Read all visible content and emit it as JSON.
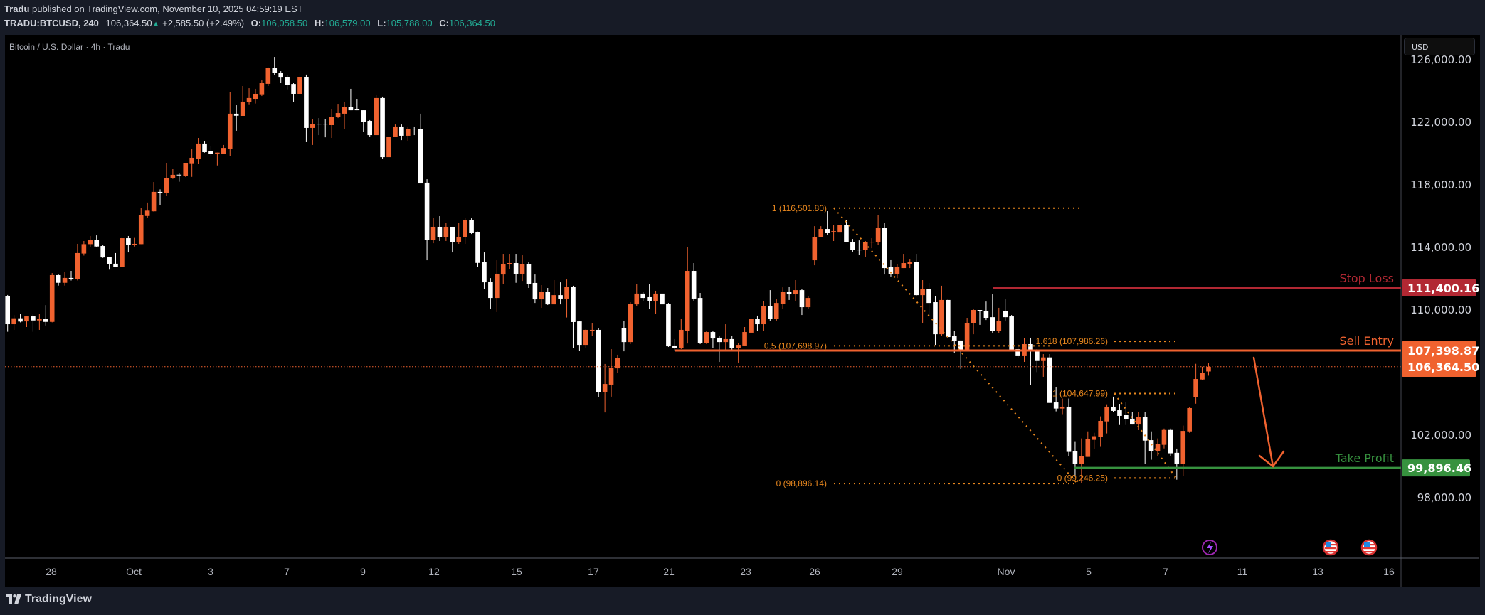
{
  "header": {
    "publisher": "Tradu",
    "published_text": "published on TradingView.com, November 10, 2025 04:59:19 EST",
    "symbol": "TRADU:BTCUSD, 240",
    "last": "106,364.50",
    "change": "+2,585.50 (+2.49%)",
    "o_label": "O:",
    "o": "106,058.50",
    "h_label": "H:",
    "h": "106,579.00",
    "l_label": "L:",
    "l": "105,788.00",
    "c_label": "C:",
    "c": "106,364.50"
  },
  "chart_title": "Bitcoin / U.S. Dollar · 4h · Tradu",
  "currency_button": "USD",
  "footer_logo": "TradingView",
  "colors": {
    "up": "#f0622f",
    "down": "#ffffff",
    "stop": "#b22833",
    "entry": "#f0622f",
    "take": "#37923f",
    "fib": "#e8871e",
    "ohlc": "#22ab94"
  },
  "chart_data": {
    "type": "candlestick",
    "title": "Bitcoin / U.S. Dollar · 4h · Tradu",
    "ylim": [
      94000,
      127600
    ],
    "grid": false,
    "price_ticks": [
      "126,000.00",
      "122,000.00",
      "118,000.00",
      "114,000.00",
      "110,000.00",
      "102,000.00",
      "98,000.00"
    ],
    "price_tick_values": [
      126000,
      122000,
      118000,
      114000,
      110000,
      102000,
      98000
    ],
    "time_ticks": [
      "28",
      "Oct",
      "3",
      "7",
      "9",
      "12",
      "15",
      "17",
      "21",
      "23",
      "26",
      "29",
      "Nov",
      "5",
      "7",
      "11",
      "13",
      "16"
    ],
    "candles_ohlc": [
      [
        110900,
        110950,
        108600,
        109080
      ],
      [
        109080,
        109660,
        108720,
        109460
      ],
      [
        109460,
        109760,
        109200,
        109250
      ],
      [
        109260,
        109600,
        108900,
        109580
      ],
      [
        109580,
        109700,
        108600,
        109320
      ],
      [
        109320,
        109760,
        108720,
        109420
      ],
      [
        109420,
        110300,
        109000,
        109230
      ],
      [
        109230,
        112350,
        109200,
        112220
      ],
      [
        112220,
        112260,
        111550,
        111730
      ],
      [
        111730,
        112430,
        111550,
        112040
      ],
      [
        112040,
        112490,
        111880,
        111960
      ],
      [
        111960,
        114220,
        111880,
        113630
      ],
      [
        113600,
        114400,
        113470,
        114200
      ],
      [
        114200,
        114720,
        114020,
        114490
      ],
      [
        114490,
        114760,
        114020,
        114050
      ],
      [
        114080,
        114130,
        113320,
        113350
      ],
      [
        113400,
        113400,
        112570,
        112900
      ],
      [
        112950,
        113630,
        112730,
        112730
      ],
      [
        112730,
        114660,
        112730,
        114580
      ],
      [
        114580,
        114720,
        113670,
        114160
      ],
      [
        114130,
        114600,
        114050,
        114220
      ],
      [
        114200,
        116490,
        114200,
        116040
      ],
      [
        116000,
        116860,
        115900,
        116340
      ],
      [
        116300,
        118170,
        116280,
        117540
      ],
      [
        117540,
        117700,
        116690,
        117480
      ],
      [
        117450,
        119400,
        117300,
        118400
      ],
      [
        118400,
        119000,
        118370,
        118630
      ],
      [
        118640,
        118720,
        118190,
        118600
      ],
      [
        118580,
        119400,
        118500,
        119400
      ],
      [
        119370,
        120260,
        118500,
        119720
      ],
      [
        119670,
        120990,
        119350,
        120630
      ],
      [
        120630,
        120760,
        120050,
        120080
      ],
      [
        120130,
        120490,
        119800,
        119990
      ],
      [
        119990,
        120050,
        119230,
        120050
      ],
      [
        119990,
        120540,
        119990,
        120350
      ],
      [
        120310,
        123940,
        119850,
        122540
      ],
      [
        122540,
        123080,
        121450,
        122410
      ],
      [
        122400,
        124310,
        122400,
        123310
      ],
      [
        123300,
        124170,
        123140,
        123540
      ],
      [
        123490,
        124130,
        123190,
        123810
      ],
      [
        123780,
        124670,
        123670,
        124490
      ],
      [
        124450,
        125500,
        124310,
        125460
      ],
      [
        125460,
        126170,
        125000,
        125130
      ],
      [
        125170,
        125260,
        124490,
        124850
      ],
      [
        124900,
        125040,
        124100,
        124400
      ],
      [
        124440,
        124490,
        123310,
        123810
      ],
      [
        123810,
        125170,
        123810,
        124900
      ],
      [
        124900,
        125040,
        120720,
        121630
      ],
      [
        121630,
        122170,
        120540,
        121900
      ],
      [
        121900,
        122260,
        121170,
        121850
      ],
      [
        121900,
        122200,
        121030,
        121850
      ],
      [
        121810,
        122810,
        120990,
        122350
      ],
      [
        122310,
        123170,
        122260,
        122580
      ],
      [
        122540,
        123310,
        121580,
        122990
      ],
      [
        122990,
        124130,
        122760,
        122760
      ],
      [
        122810,
        123490,
        122760,
        122760
      ],
      [
        122760,
        122760,
        121400,
        122030
      ],
      [
        122080,
        122130,
        121080,
        121170
      ],
      [
        121170,
        123720,
        121170,
        123540
      ],
      [
        123540,
        123630,
        119670,
        119760
      ],
      [
        119760,
        121170,
        119630,
        121080
      ],
      [
        121040,
        121850,
        121040,
        121720
      ],
      [
        121720,
        121850,
        120850,
        121130
      ],
      [
        121130,
        121720,
        120810,
        121580
      ],
      [
        121580,
        121720,
        121170,
        121540
      ],
      [
        121540,
        122540,
        118080,
        118080
      ],
      [
        118130,
        118350,
        113170,
        114450
      ],
      [
        114450,
        115900,
        114260,
        115310
      ],
      [
        115310,
        115990,
        114400,
        114670
      ],
      [
        114670,
        115540,
        114400,
        115310
      ],
      [
        115310,
        115310,
        113670,
        114350
      ],
      [
        114350,
        115540,
        114220,
        114670
      ],
      [
        114630,
        115900,
        114220,
        115720
      ],
      [
        115720,
        115850,
        114850,
        114900
      ],
      [
        114950,
        115000,
        112760,
        113000
      ],
      [
        113040,
        113670,
        111350,
        111760
      ],
      [
        111810,
        112030,
        110040,
        110760
      ],
      [
        110760,
        113170,
        109860,
        112310
      ],
      [
        112260,
        113580,
        111670,
        112940
      ],
      [
        112960,
        113580,
        112580,
        112990
      ],
      [
        112990,
        113580,
        111730,
        112310
      ],
      [
        112310,
        113490,
        111850,
        112940
      ],
      [
        112940,
        113040,
        111400,
        111670
      ],
      [
        111720,
        112260,
        110440,
        110670
      ],
      [
        110670,
        111580,
        110130,
        111130
      ],
      [
        111130,
        111400,
        110310,
        110350
      ],
      [
        110350,
        111900,
        110350,
        110940
      ],
      [
        110940,
        111760,
        110350,
        110720
      ],
      [
        110720,
        111940,
        109510,
        111490
      ],
      [
        111490,
        111540,
        107540,
        109220
      ],
      [
        109260,
        109260,
        107400,
        107760
      ],
      [
        107760,
        108760,
        107540,
        108720
      ],
      [
        108670,
        109170,
        108310,
        108720
      ],
      [
        108720,
        108850,
        104400,
        104720
      ],
      [
        104720,
        106540,
        103440,
        105260
      ],
      [
        105220,
        107490,
        104450,
        106310
      ],
      [
        106260,
        107130,
        105990,
        106940
      ],
      [
        108810,
        109310,
        107350,
        107940
      ],
      [
        107940,
        110490,
        107810,
        110400
      ],
      [
        110350,
        111630,
        110260,
        111040
      ],
      [
        111040,
        111130,
        110580,
        110760
      ],
      [
        110810,
        111670,
        110080,
        110580
      ],
      [
        110580,
        111220,
        109760,
        111040
      ],
      [
        111040,
        111220,
        110130,
        110350
      ],
      [
        110400,
        110440,
        107630,
        107670
      ],
      [
        107720,
        108130,
        107400,
        107580
      ],
      [
        107580,
        109400,
        107490,
        108720
      ],
      [
        108670,
        113990,
        107850,
        112490
      ],
      [
        112490,
        112990,
        110540,
        110720
      ],
      [
        110760,
        111080,
        107810,
        107900
      ],
      [
        107900,
        108670,
        107810,
        108580
      ],
      [
        108580,
        108630,
        107580,
        108170
      ],
      [
        108220,
        108350,
        106670,
        107940
      ],
      [
        107940,
        109080,
        107440,
        108130
      ],
      [
        108130,
        108350,
        107400,
        107580
      ],
      [
        107580,
        107900,
        106630,
        107760
      ],
      [
        107720,
        108900,
        107720,
        108580
      ],
      [
        108540,
        110260,
        108540,
        109440
      ],
      [
        109440,
        109630,
        108630,
        109080
      ],
      [
        109080,
        110540,
        108670,
        110220
      ],
      [
        110220,
        111260,
        109310,
        109440
      ],
      [
        109440,
        110670,
        109310,
        110440
      ],
      [
        110400,
        111440,
        110080,
        111130
      ],
      [
        111130,
        111490,
        110630,
        110990
      ],
      [
        110990,
        111900,
        110540,
        111260
      ],
      [
        111260,
        111350,
        109670,
        110170
      ],
      [
        110170,
        110900,
        110080,
        110760
      ],
      [
        113170,
        115350,
        112850,
        114670
      ],
      [
        114630,
        115350,
        114630,
        115170
      ],
      [
        115170,
        116310,
        114810,
        114900
      ],
      [
        114990,
        115440,
        114400,
        115030
      ],
      [
        114940,
        115540,
        114400,
        115400
      ],
      [
        115400,
        115720,
        114310,
        114310
      ],
      [
        114350,
        114530,
        113720,
        113810
      ],
      [
        113850,
        114440,
        113490,
        113810
      ],
      [
        113810,
        114400,
        113400,
        114310
      ],
      [
        114310,
        114580,
        113940,
        114350
      ],
      [
        114310,
        116040,
        114130,
        115260
      ],
      [
        115260,
        115540,
        112260,
        112670
      ],
      [
        112720,
        113220,
        112130,
        112310
      ],
      [
        112310,
        112900,
        112030,
        112720
      ],
      [
        112670,
        113580,
        112670,
        112990
      ],
      [
        112940,
        113260,
        112670,
        113080
      ],
      [
        113080,
        113580,
        110900,
        110940
      ],
      [
        110940,
        111900,
        109170,
        111350
      ],
      [
        111350,
        111720,
        109630,
        110440
      ],
      [
        110490,
        110900,
        107760,
        108440
      ],
      [
        108440,
        111540,
        108350,
        110630
      ],
      [
        110630,
        110720,
        108220,
        108260
      ],
      [
        108310,
        108630,
        107220,
        107990
      ],
      [
        108040,
        108040,
        106220,
        107400
      ],
      [
        107400,
        109490,
        107400,
        109170
      ],
      [
        109130,
        110080,
        108440,
        109990
      ],
      [
        109990,
        109990,
        109040,
        109940
      ],
      [
        109940,
        110530,
        109350,
        109490
      ],
      [
        109530,
        110990,
        108540,
        108630
      ],
      [
        108630,
        110130,
        108490,
        109310
      ],
      [
        109900,
        110670,
        109260,
        109530
      ],
      [
        109580,
        109670,
        107350,
        107440
      ],
      [
        107490,
        107810,
        106900,
        107040
      ],
      [
        107040,
        108170,
        106670,
        107810
      ],
      [
        107810,
        108220,
        105190,
        107340
      ],
      [
        107340,
        107490,
        106020,
        106730
      ],
      [
        106730,
        107170,
        105720,
        106960
      ],
      [
        106960,
        107170,
        104050,
        104050
      ],
      [
        104080,
        105080,
        103510,
        103690
      ],
      [
        103690,
        104330,
        103330,
        103810
      ],
      [
        103810,
        104330,
        100640,
        100920
      ],
      [
        100950,
        101600,
        99330,
        100140
      ],
      [
        100140,
        101780,
        98900,
        100630
      ],
      [
        100600,
        102230,
        100600,
        101720
      ],
      [
        101690,
        102140,
        101100,
        101920
      ],
      [
        101870,
        103190,
        101240,
        102900
      ],
      [
        102870,
        103960,
        102100,
        103810
      ],
      [
        103810,
        104450,
        103460,
        103540
      ],
      [
        103580,
        103990,
        102640,
        103220
      ],
      [
        103270,
        104130,
        102640,
        102990
      ],
      [
        103040,
        103490,
        102670,
        102670
      ],
      [
        102670,
        103490,
        102310,
        103170
      ],
      [
        103170,
        103490,
        100140,
        101640
      ],
      [
        101670,
        102230,
        100420,
        100950
      ],
      [
        100950,
        101780,
        100640,
        101400
      ],
      [
        101370,
        102410,
        101140,
        102320
      ],
      [
        102320,
        102410,
        100640,
        100830
      ],
      [
        100860,
        101130,
        99140,
        100140
      ],
      [
        100140,
        102600,
        99390,
        102260
      ],
      [
        102230,
        103780,
        102140,
        103720
      ],
      [
        104420,
        106550,
        104000,
        105580
      ],
      [
        105550,
        106360,
        105510,
        105990
      ],
      [
        106060,
        106580,
        105790,
        106360
      ]
    ]
  },
  "levels": [
    {
      "name": "Stop Loss",
      "price": 111400.16,
      "price_label": "111,400.16"
    },
    {
      "name": "Sell Entry",
      "price": 107398.87,
      "price_label": "107,398.87"
    },
    {
      "name": "Take Profit",
      "price": 99896.46,
      "price_label": "99,896.46"
    }
  ],
  "current_price": {
    "price": 106364.5,
    "label": "106,364.50"
  },
  "fib_1": {
    "levels": [
      {
        "label": "1 (116,501.80)",
        "price": 116501.8
      },
      {
        "label": "0.5 (107,698.97)",
        "price": 107698.97
      },
      {
        "label": "0 (98,896.14)",
        "price": 98896.14
      }
    ]
  },
  "fib_2": {
    "levels": [
      {
        "label": "1.618 (107,986.26)",
        "price": 107986.26
      },
      {
        "label": "1 (104,647.99)",
        "price": 104647.99
      },
      {
        "label": "0 (99,246.25)",
        "price": 99246.25
      }
    ]
  },
  "event_icons": [
    "lightning-icon",
    "us-flag-icon",
    "us-flag-icon"
  ]
}
